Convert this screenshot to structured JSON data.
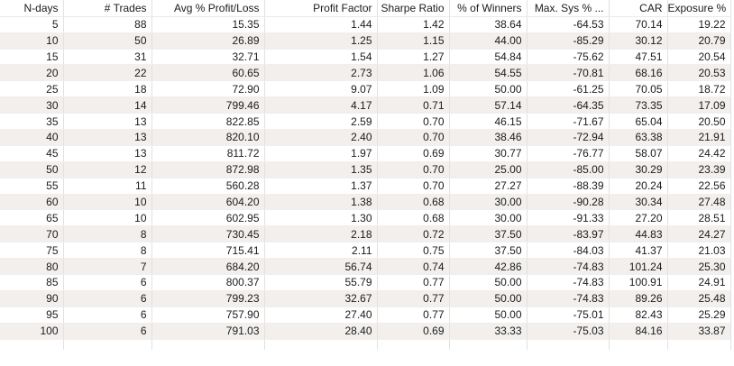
{
  "table": {
    "name": "optimization-results",
    "columns": [
      "N-days",
      "# Trades",
      "Avg % Profit/Loss",
      "Profit Factor",
      "Sharpe Ratio",
      "% of Winners",
      "Max. Sys % ...",
      "CAR",
      "Exposure %"
    ],
    "rows": [
      [
        "5",
        "88",
        "15.35",
        "1.44",
        "1.42",
        "38.64",
        "-64.53",
        "70.14",
        "19.22"
      ],
      [
        "10",
        "50",
        "26.89",
        "1.25",
        "1.15",
        "44.00",
        "-85.29",
        "30.12",
        "20.79"
      ],
      [
        "15",
        "31",
        "32.71",
        "1.54",
        "1.27",
        "54.84",
        "-75.62",
        "47.51",
        "20.54"
      ],
      [
        "20",
        "22",
        "60.65",
        "2.73",
        "1.06",
        "54.55",
        "-70.81",
        "68.16",
        "20.53"
      ],
      [
        "25",
        "18",
        "72.90",
        "9.07",
        "1.09",
        "50.00",
        "-61.25",
        "70.05",
        "18.72"
      ],
      [
        "30",
        "14",
        "799.46",
        "4.17",
        "0.71",
        "57.14",
        "-64.35",
        "73.35",
        "17.09"
      ],
      [
        "35",
        "13",
        "822.85",
        "2.59",
        "0.70",
        "46.15",
        "-71.67",
        "65.04",
        "20.50"
      ],
      [
        "40",
        "13",
        "820.10",
        "2.40",
        "0.70",
        "38.46",
        "-72.94",
        "63.38",
        "21.91"
      ],
      [
        "45",
        "13",
        "811.72",
        "1.97",
        "0.69",
        "30.77",
        "-76.77",
        "58.07",
        "24.42"
      ],
      [
        "50",
        "12",
        "872.98",
        "1.35",
        "0.70",
        "25.00",
        "-85.00",
        "30.29",
        "23.39"
      ],
      [
        "55",
        "11",
        "560.28",
        "1.37",
        "0.70",
        "27.27",
        "-88.39",
        "20.24",
        "22.56"
      ],
      [
        "60",
        "10",
        "604.20",
        "1.38",
        "0.68",
        "30.00",
        "-90.28",
        "30.34",
        "27.48"
      ],
      [
        "65",
        "10",
        "602.95",
        "1.30",
        "0.68",
        "30.00",
        "-91.33",
        "27.20",
        "28.51"
      ],
      [
        "70",
        "8",
        "730.45",
        "2.18",
        "0.72",
        "37.50",
        "-83.97",
        "44.83",
        "24.27"
      ],
      [
        "75",
        "8",
        "715.41",
        "2.11",
        "0.75",
        "37.50",
        "-84.03",
        "41.37",
        "21.03"
      ],
      [
        "80",
        "7",
        "684.20",
        "56.74",
        "0.74",
        "42.86",
        "-74.83",
        "101.24",
        "25.30"
      ],
      [
        "85",
        "6",
        "800.37",
        "55.79",
        "0.77",
        "50.00",
        "-74.83",
        "100.91",
        "24.91"
      ],
      [
        "90",
        "6",
        "799.23",
        "32.67",
        "0.77",
        "50.00",
        "-74.83",
        "89.26",
        "25.48"
      ],
      [
        "95",
        "6",
        "757.90",
        "27.40",
        "0.77",
        "50.00",
        "-75.01",
        "82.43",
        "25.29"
      ],
      [
        "100",
        "6",
        "791.03",
        "28.40",
        "0.69",
        "33.33",
        "-75.03",
        "84.16",
        "33.87"
      ]
    ]
  },
  "colors": {
    "text": "#1b1b1b",
    "grid_vertical": "#e3e2e1",
    "grid_horizontal": "#f0efee",
    "stripe_dither": "#e8e4e0",
    "background": "#ffffff"
  }
}
